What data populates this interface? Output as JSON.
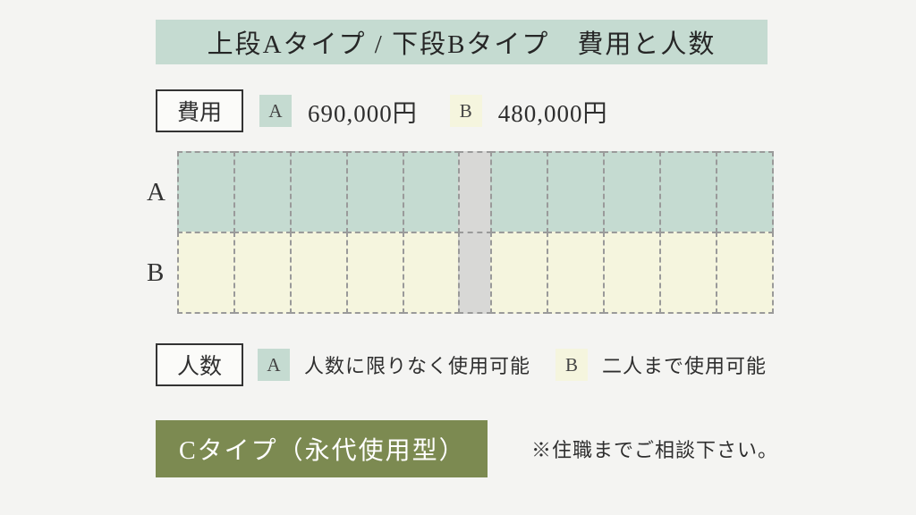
{
  "title": "上段Aタイプ / 下段Bタイプ　費用と人数",
  "labels": {
    "cost": "費用",
    "people": "人数",
    "a": "A",
    "b": "B"
  },
  "cost": {
    "a": "690,000円",
    "b": "480,000円"
  },
  "people": {
    "a": "人数に限りなく使用可能",
    "b": "二人まで使用可能"
  },
  "diagram": {
    "rows": [
      "A",
      "B"
    ],
    "cols_per_block": 5,
    "row_colors": {
      "A": "#c5dbd1",
      "B": "#f5f5de"
    },
    "gap_color": "#d8d8d6",
    "dash_color": "#9a9a9a"
  },
  "c_type": {
    "label": "Cタイプ（永代使用型）",
    "note": "※住職までご相談下さい。",
    "bg_color": "#7c8a51",
    "text_color": "#ffffff"
  },
  "colors": {
    "page_bg": "#f4f4f2",
    "title_bg": "#c5dbd1",
    "swatch_a": "#c5dbd1",
    "swatch_b": "#f5f5de",
    "text": "#2e2e2e"
  },
  "typography": {
    "title_fontsize": 29,
    "body_fontsize": 25,
    "family": "serif"
  }
}
